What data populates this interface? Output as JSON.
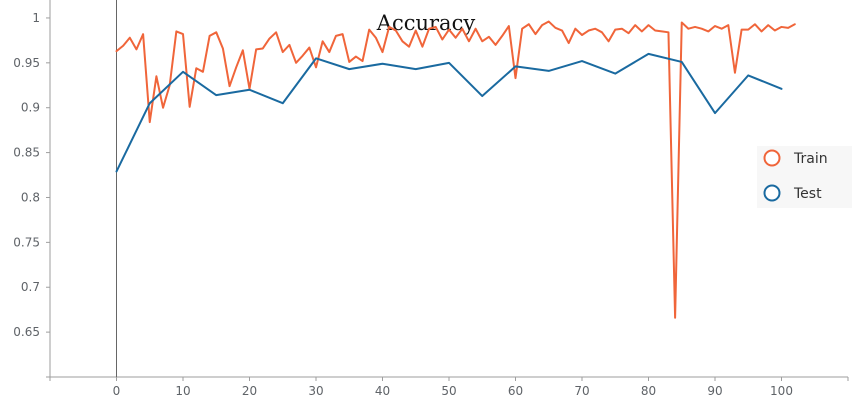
{
  "chart_data": {
    "type": "line",
    "title": "Accuracy",
    "xlabel": "",
    "ylabel": "",
    "xlim": [
      -10,
      110
    ],
    "ylim": [
      0.6,
      1.02
    ],
    "x_ticks": [
      0,
      10,
      20,
      30,
      40,
      50,
      60,
      70,
      80,
      90,
      100
    ],
    "y_ticks": [
      0.65,
      0.7,
      0.75,
      0.8,
      0.85,
      0.9,
      0.95,
      1
    ],
    "grid": false,
    "legend_position": "right",
    "series": [
      {
        "name": "Train",
        "color": "#f0653a",
        "x": [
          0,
          1,
          2,
          3,
          4,
          5,
          6,
          7,
          8,
          9,
          10,
          11,
          12,
          13,
          14,
          15,
          16,
          17,
          18,
          19,
          20,
          21,
          22,
          23,
          24,
          25,
          26,
          27,
          28,
          29,
          30,
          31,
          32,
          33,
          34,
          35,
          36,
          37,
          38,
          39,
          40,
          41,
          42,
          43,
          44,
          45,
          46,
          47,
          48,
          49,
          50,
          51,
          52,
          53,
          54,
          55,
          56,
          57,
          58,
          59,
          60,
          61,
          62,
          63,
          64,
          65,
          66,
          67,
          68,
          69,
          70,
          71,
          72,
          73,
          74,
          75,
          76,
          77,
          78,
          79,
          80,
          81,
          82,
          83,
          84,
          85,
          86,
          87,
          88,
          89,
          90,
          91,
          92,
          93,
          94,
          95,
          96,
          97,
          98,
          99,
          100,
          101,
          102
        ],
        "y": [
          0.963,
          0.969,
          0.978,
          0.965,
          0.982,
          0.884,
          0.935,
          0.9,
          0.925,
          0.985,
          0.982,
          0.901,
          0.944,
          0.94,
          0.98,
          0.984,
          0.966,
          0.924,
          0.945,
          0.964,
          0.921,
          0.965,
          0.966,
          0.977,
          0.984,
          0.962,
          0.97,
          0.95,
          0.958,
          0.967,
          0.945,
          0.974,
          0.962,
          0.98,
          0.982,
          0.951,
          0.957,
          0.952,
          0.987,
          0.978,
          0.962,
          0.99,
          0.986,
          0.974,
          0.968,
          0.986,
          0.968,
          0.988,
          0.99,
          0.976,
          0.987,
          0.978,
          0.988,
          0.974,
          0.988,
          0.974,
          0.979,
          0.97,
          0.98,
          0.991,
          0.933,
          0.988,
          0.993,
          0.982,
          0.992,
          0.996,
          0.989,
          0.986,
          0.972,
          0.988,
          0.981,
          0.986,
          0.988,
          0.984,
          0.974,
          0.987,
          0.988,
          0.983,
          0.992,
          0.985,
          0.992,
          0.986,
          0.985,
          0.984,
          0.666,
          0.995,
          0.988,
          0.99,
          0.988,
          0.985,
          0.991,
          0.988,
          0.992,
          0.939,
          0.987,
          0.987,
          0.993,
          0.985,
          0.992,
          0.986,
          0.99,
          0.989,
          0.993
        ]
      },
      {
        "name": "Test",
        "color": "#1a6aa0",
        "x": [
          0,
          5,
          10,
          15,
          20,
          25,
          30,
          35,
          40,
          45,
          50,
          55,
          60,
          65,
          70,
          75,
          80,
          85,
          90,
          95,
          100
        ],
        "y": [
          0.829,
          0.905,
          0.94,
          0.914,
          0.92,
          0.905,
          0.955,
          0.943,
          0.949,
          0.943,
          0.95,
          0.913,
          0.946,
          0.941,
          0.952,
          0.938,
          0.96,
          0.951,
          0.894,
          0.936,
          0.921
        ]
      }
    ]
  }
}
